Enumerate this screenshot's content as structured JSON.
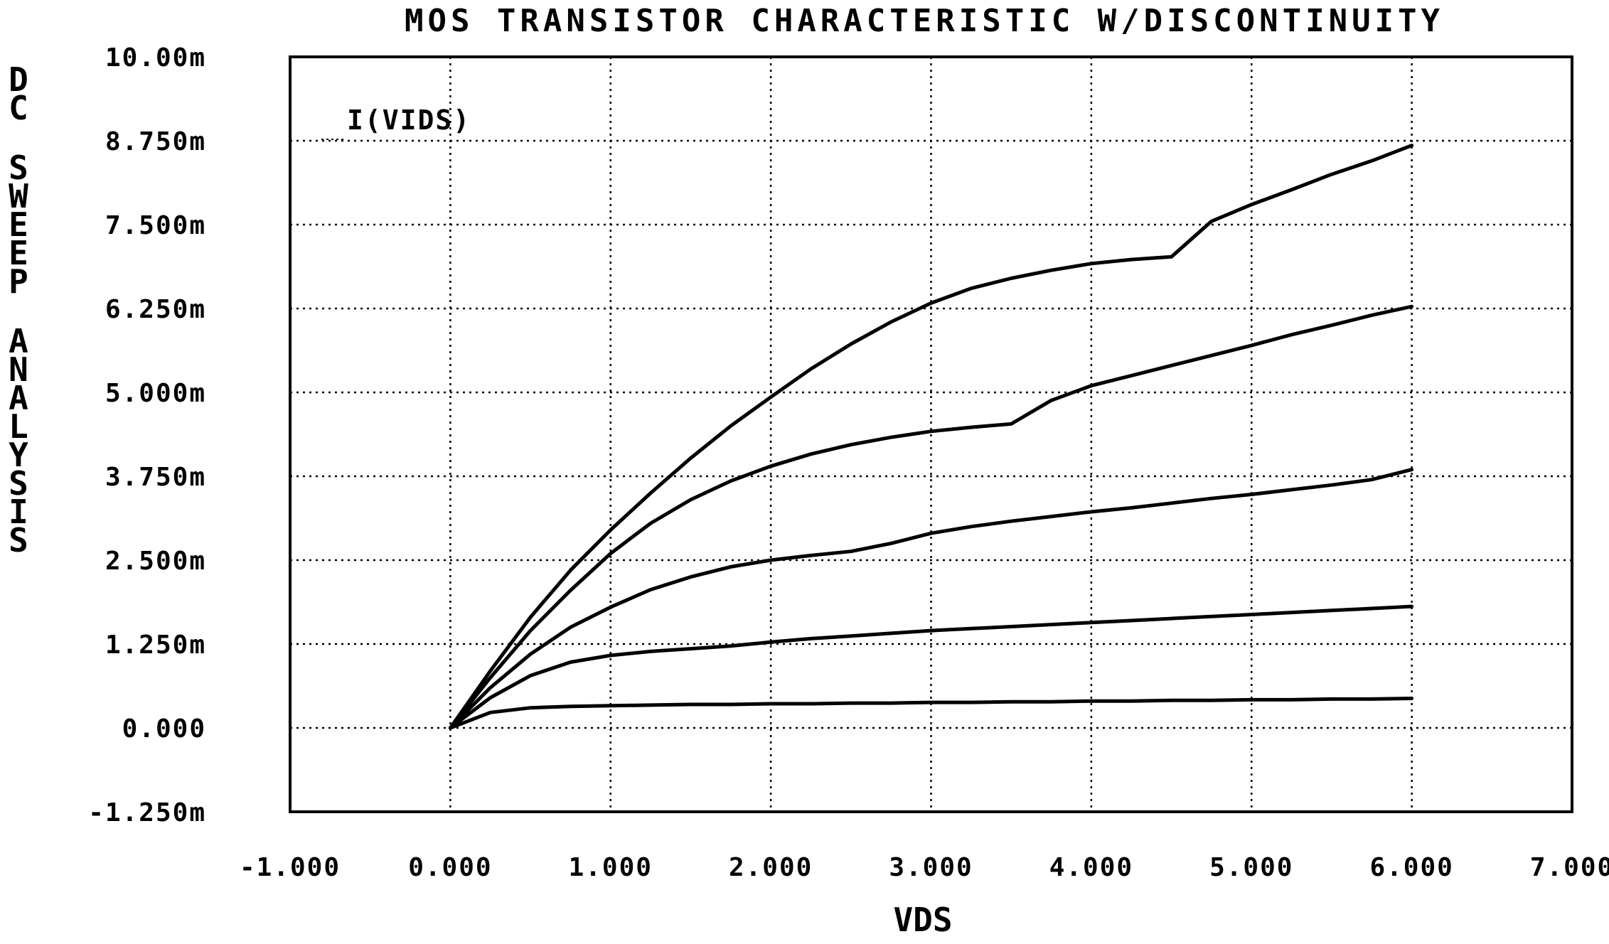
{
  "chart_data": {
    "type": "line",
    "title": "MOS TRANSISTOR CHARACTERISTIC W/DISCONTINUITY",
    "xlabel": "VDS",
    "ylabel": "DC SWEEP ANALYSIS",
    "series_label": "I(VIDS)",
    "xlim": [
      -1.0,
      7.0
    ],
    "ylim": [
      -1.25,
      10.0
    ],
    "x_ticks": [
      "-1.000",
      "0.000",
      "1.000",
      "2.000",
      "3.000",
      "4.000",
      "5.000",
      "6.000",
      "7.000"
    ],
    "x_tick_values": [
      -1,
      0,
      1,
      2,
      3,
      4,
      5,
      6,
      7
    ],
    "y_ticks": [
      "10.00m",
      "8.750m",
      "7.500m",
      "6.250m",
      "5.000m",
      "3.750m",
      "2.500m",
      "1.250m",
      "0.000",
      "-1.250m"
    ],
    "y_tick_values": [
      10.0,
      8.75,
      7.5,
      6.25,
      5.0,
      3.75,
      2.5,
      1.25,
      0.0,
      -1.25
    ],
    "grid": true,
    "x": [
      0,
      0.25,
      0.5,
      0.75,
      1.0,
      1.25,
      1.5,
      1.75,
      2.0,
      2.25,
      2.5,
      2.75,
      3.0,
      3.25,
      3.5,
      3.75,
      4.0,
      4.25,
      4.5,
      4.75,
      5.0,
      5.25,
      5.5,
      5.75,
      6.0
    ],
    "series": [
      {
        "values": [
          0,
          0.23,
          0.3,
          0.32,
          0.33,
          0.34,
          0.35,
          0.35,
          0.36,
          0.36,
          0.37,
          0.37,
          0.38,
          0.38,
          0.39,
          0.39,
          0.4,
          0.4,
          0.41,
          0.41,
          0.42,
          0.42,
          0.43,
          0.43,
          0.44
        ]
      },
      {
        "values": [
          0,
          0.45,
          0.78,
          0.98,
          1.08,
          1.14,
          1.18,
          1.22,
          1.28,
          1.33,
          1.37,
          1.41,
          1.45,
          1.48,
          1.51,
          1.54,
          1.57,
          1.6,
          1.63,
          1.66,
          1.69,
          1.72,
          1.75,
          1.78,
          1.81
        ]
      },
      {
        "values": [
          0,
          0.6,
          1.1,
          1.5,
          1.8,
          2.06,
          2.25,
          2.4,
          2.5,
          2.57,
          2.63,
          2.75,
          2.9,
          3.0,
          3.08,
          3.15,
          3.22,
          3.28,
          3.35,
          3.42,
          3.48,
          3.55,
          3.62,
          3.7,
          3.85
        ]
      },
      {
        "values": [
          0,
          0.75,
          1.45,
          2.05,
          2.6,
          3.05,
          3.4,
          3.68,
          3.9,
          4.08,
          4.22,
          4.33,
          4.42,
          4.48,
          4.53,
          4.88,
          5.1,
          5.25,
          5.4,
          5.55,
          5.7,
          5.86,
          6.0,
          6.15,
          6.28
        ]
      },
      {
        "values": [
          0,
          0.85,
          1.65,
          2.35,
          2.95,
          3.5,
          4.02,
          4.5,
          4.93,
          5.35,
          5.72,
          6.05,
          6.33,
          6.55,
          6.7,
          6.82,
          6.92,
          6.98,
          7.02,
          7.55,
          7.8,
          8.02,
          8.25,
          8.45,
          8.68
        ]
      }
    ]
  }
}
